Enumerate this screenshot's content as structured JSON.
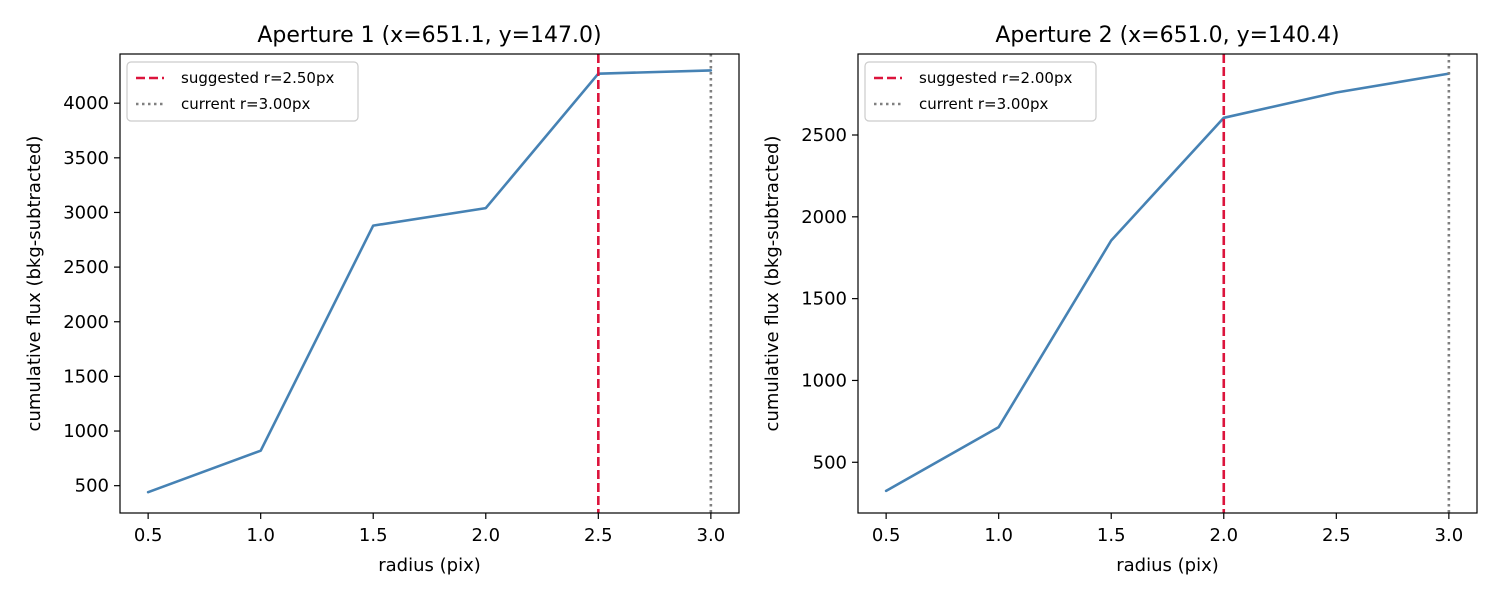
{
  "figure": {
    "background": "#ffffff"
  },
  "chart_data": [
    {
      "type": "line",
      "title": "Aperture 1  (x=651.1, y=147.0)",
      "xlabel": "radius (pix)",
      "ylabel": "cumulative flux (bkg-subtracted)",
      "xlim": [
        0.375,
        3.125
      ],
      "ylim": [
        250,
        4450
      ],
      "xticks": [
        0.5,
        1.0,
        1.5,
        2.0,
        2.5,
        3.0
      ],
      "xtick_labels": [
        "0.5",
        "1.0",
        "1.5",
        "2.0",
        "2.5",
        "3.0"
      ],
      "yticks": [
        500,
        1000,
        1500,
        2000,
        2500,
        3000,
        3500,
        4000
      ],
      "ytick_labels": [
        "500",
        "1000",
        "1500",
        "2000",
        "2500",
        "3000",
        "3500",
        "4000"
      ],
      "grid": false,
      "legend_position": "top-left",
      "series": [
        {
          "x": [
            0.5,
            1.0,
            1.5,
            2.0,
            2.5,
            3.0
          ],
          "y": [
            440,
            820,
            2880,
            3040,
            4270,
            4300
          ],
          "color": "#4682b4"
        }
      ],
      "vlines": [
        {
          "x": 2.5,
          "label": "suggested r=2.50px",
          "color": "#dc143c",
          "style": "dashed"
        },
        {
          "x": 3.0,
          "label": "current r=3.00px",
          "color": "#808080",
          "style": "dotted"
        }
      ]
    },
    {
      "type": "line",
      "title": "Aperture 2  (x=651.0, y=140.4)",
      "xlabel": "radius (pix)",
      "ylabel": "cumulative flux (bkg-subtracted)",
      "xlim": [
        0.375,
        3.125
      ],
      "ylim": [
        190,
        2995
      ],
      "xticks": [
        0.5,
        1.0,
        1.5,
        2.0,
        2.5,
        3.0
      ],
      "xtick_labels": [
        "0.5",
        "1.0",
        "1.5",
        "2.0",
        "2.5",
        "3.0"
      ],
      "yticks": [
        500,
        1000,
        1500,
        2000,
        2500
      ],
      "ytick_labels": [
        "500",
        "1000",
        "1500",
        "2000",
        "2500"
      ],
      "grid": false,
      "legend_position": "top-left",
      "series": [
        {
          "x": [
            0.5,
            1.0,
            1.5,
            2.0,
            2.5,
            3.0
          ],
          "y": [
            325,
            715,
            1855,
            2605,
            2760,
            2875
          ],
          "color": "#4682b4"
        }
      ],
      "vlines": [
        {
          "x": 2.0,
          "label": "suggested r=2.00px",
          "color": "#dc143c",
          "style": "dashed"
        },
        {
          "x": 3.0,
          "label": "current r=3.00px",
          "color": "#808080",
          "style": "dotted"
        }
      ]
    }
  ]
}
